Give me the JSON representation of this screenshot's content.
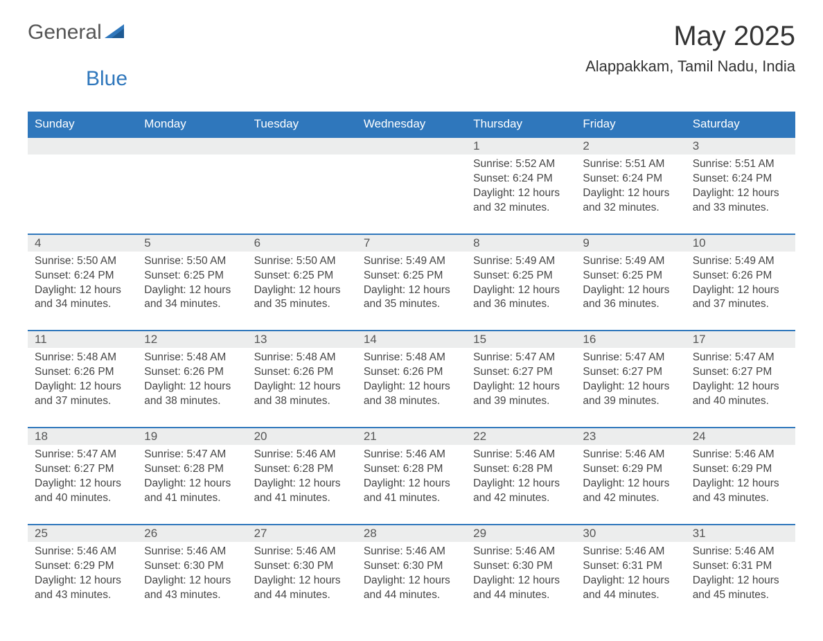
{
  "logo": {
    "text1": "General",
    "text2": "Blue",
    "accent_color": "#2f77bc"
  },
  "header": {
    "title": "May 2025",
    "location": "Alappakkam, Tamil Nadu, India"
  },
  "calendar": {
    "weekdays": [
      "Sunday",
      "Monday",
      "Tuesday",
      "Wednesday",
      "Thursday",
      "Friday",
      "Saturday"
    ],
    "header_bg": "#2f77bc",
    "header_fg": "#ffffff",
    "daynum_bg": "#eceded",
    "row_border_color": "#2f77bc",
    "leading_blanks": 4,
    "days": [
      {
        "n": "1",
        "sunrise": "5:52 AM",
        "sunset": "6:24 PM",
        "daylight": "12 hours and 32 minutes."
      },
      {
        "n": "2",
        "sunrise": "5:51 AM",
        "sunset": "6:24 PM",
        "daylight": "12 hours and 32 minutes."
      },
      {
        "n": "3",
        "sunrise": "5:51 AM",
        "sunset": "6:24 PM",
        "daylight": "12 hours and 33 minutes."
      },
      {
        "n": "4",
        "sunrise": "5:50 AM",
        "sunset": "6:24 PM",
        "daylight": "12 hours and 34 minutes."
      },
      {
        "n": "5",
        "sunrise": "5:50 AM",
        "sunset": "6:25 PM",
        "daylight": "12 hours and 34 minutes."
      },
      {
        "n": "6",
        "sunrise": "5:50 AM",
        "sunset": "6:25 PM",
        "daylight": "12 hours and 35 minutes."
      },
      {
        "n": "7",
        "sunrise": "5:49 AM",
        "sunset": "6:25 PM",
        "daylight": "12 hours and 35 minutes."
      },
      {
        "n": "8",
        "sunrise": "5:49 AM",
        "sunset": "6:25 PM",
        "daylight": "12 hours and 36 minutes."
      },
      {
        "n": "9",
        "sunrise": "5:49 AM",
        "sunset": "6:25 PM",
        "daylight": "12 hours and 36 minutes."
      },
      {
        "n": "10",
        "sunrise": "5:49 AM",
        "sunset": "6:26 PM",
        "daylight": "12 hours and 37 minutes."
      },
      {
        "n": "11",
        "sunrise": "5:48 AM",
        "sunset": "6:26 PM",
        "daylight": "12 hours and 37 minutes."
      },
      {
        "n": "12",
        "sunrise": "5:48 AM",
        "sunset": "6:26 PM",
        "daylight": "12 hours and 38 minutes."
      },
      {
        "n": "13",
        "sunrise": "5:48 AM",
        "sunset": "6:26 PM",
        "daylight": "12 hours and 38 minutes."
      },
      {
        "n": "14",
        "sunrise": "5:48 AM",
        "sunset": "6:26 PM",
        "daylight": "12 hours and 38 minutes."
      },
      {
        "n": "15",
        "sunrise": "5:47 AM",
        "sunset": "6:27 PM",
        "daylight": "12 hours and 39 minutes."
      },
      {
        "n": "16",
        "sunrise": "5:47 AM",
        "sunset": "6:27 PM",
        "daylight": "12 hours and 39 minutes."
      },
      {
        "n": "17",
        "sunrise": "5:47 AM",
        "sunset": "6:27 PM",
        "daylight": "12 hours and 40 minutes."
      },
      {
        "n": "18",
        "sunrise": "5:47 AM",
        "sunset": "6:27 PM",
        "daylight": "12 hours and 40 minutes."
      },
      {
        "n": "19",
        "sunrise": "5:47 AM",
        "sunset": "6:28 PM",
        "daylight": "12 hours and 41 minutes."
      },
      {
        "n": "20",
        "sunrise": "5:46 AM",
        "sunset": "6:28 PM",
        "daylight": "12 hours and 41 minutes."
      },
      {
        "n": "21",
        "sunrise": "5:46 AM",
        "sunset": "6:28 PM",
        "daylight": "12 hours and 41 minutes."
      },
      {
        "n": "22",
        "sunrise": "5:46 AM",
        "sunset": "6:28 PM",
        "daylight": "12 hours and 42 minutes."
      },
      {
        "n": "23",
        "sunrise": "5:46 AM",
        "sunset": "6:29 PM",
        "daylight": "12 hours and 42 minutes."
      },
      {
        "n": "24",
        "sunrise": "5:46 AM",
        "sunset": "6:29 PM",
        "daylight": "12 hours and 43 minutes."
      },
      {
        "n": "25",
        "sunrise": "5:46 AM",
        "sunset": "6:29 PM",
        "daylight": "12 hours and 43 minutes."
      },
      {
        "n": "26",
        "sunrise": "5:46 AM",
        "sunset": "6:30 PM",
        "daylight": "12 hours and 43 minutes."
      },
      {
        "n": "27",
        "sunrise": "5:46 AM",
        "sunset": "6:30 PM",
        "daylight": "12 hours and 44 minutes."
      },
      {
        "n": "28",
        "sunrise": "5:46 AM",
        "sunset": "6:30 PM",
        "daylight": "12 hours and 44 minutes."
      },
      {
        "n": "29",
        "sunrise": "5:46 AM",
        "sunset": "6:30 PM",
        "daylight": "12 hours and 44 minutes."
      },
      {
        "n": "30",
        "sunrise": "5:46 AM",
        "sunset": "6:31 PM",
        "daylight": "12 hours and 44 minutes."
      },
      {
        "n": "31",
        "sunrise": "5:46 AM",
        "sunset": "6:31 PM",
        "daylight": "12 hours and 45 minutes."
      }
    ],
    "labels": {
      "sunrise": "Sunrise: ",
      "sunset": "Sunset: ",
      "daylight": "Daylight: "
    }
  }
}
